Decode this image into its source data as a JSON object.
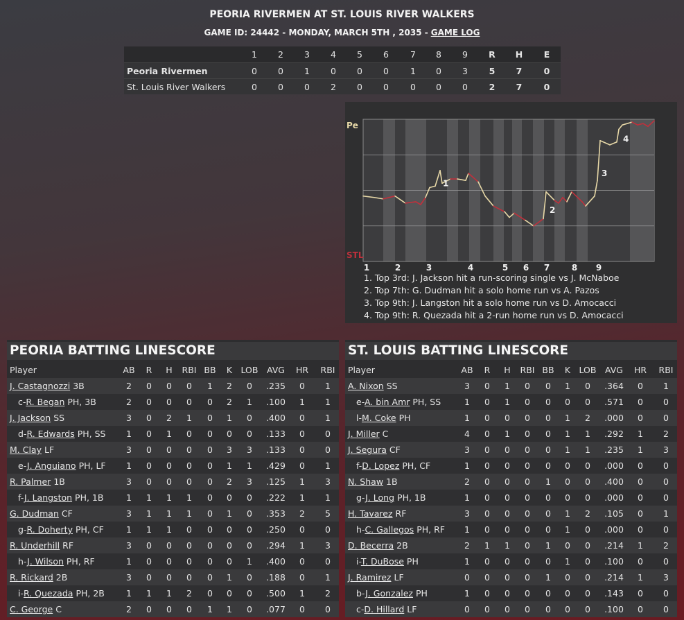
{
  "header": {
    "title": "PEORIA RIVERMEN AT ST. LOUIS RIVER WALKERS",
    "subtitle": "GAME ID: 24442 - MONDAY, MARCH 5TH , 2035 -",
    "link": "GAME LOG"
  },
  "linescore": {
    "columns": [
      "1",
      "2",
      "3",
      "4",
      "5",
      "6",
      "7",
      "8",
      "9",
      "R",
      "H",
      "E"
    ],
    "rows": [
      {
        "team": "Peoria Rivermen",
        "cells": [
          "0",
          "0",
          "1",
          "0",
          "0",
          "0",
          "1",
          "0",
          "3",
          "5",
          "7",
          "0"
        ]
      },
      {
        "team": "St. Louis River Walkers",
        "cells": [
          "0",
          "0",
          "0",
          "2",
          "0",
          "0",
          "0",
          "0",
          "0",
          "2",
          "7",
          "0"
        ]
      }
    ]
  },
  "chart_data": {
    "type": "line",
    "x": [
      0,
      3.2,
      5.8,
      9.2,
      12.2,
      15.2,
      16.6,
      18,
      19.2,
      20.8,
      22.2,
      22.8,
      25.2,
      27.2,
      29.6,
      30.4,
      33.2,
      35.2,
      37.6,
      40.8,
      42.2,
      43.6,
      46.8,
      49.2,
      52,
      52.8,
      55.2,
      56.4,
      57.6,
      58.8,
      60.2,
      63.2,
      64.2,
      66.8,
      67.6,
      68.4,
      71.2,
      73.2,
      73.8,
      74.8,
      77.6,
      79.2,
      80.8,
      82.2,
      84
    ],
    "values": [
      46,
      45,
      44,
      46,
      41,
      42,
      40,
      45,
      52,
      53,
      64,
      55,
      58,
      58,
      57,
      62,
      56,
      46,
      39,
      35,
      31,
      34,
      29,
      25,
      30,
      49,
      43,
      41,
      45,
      42,
      49,
      42,
      39,
      46,
      57,
      85,
      82,
      84,
      93,
      96,
      98,
      96,
      97,
      95,
      99
    ],
    "color": "#e8d9a8",
    "alt_color": "#c0303c",
    "xlim": [
      0,
      84
    ],
    "xticks": [
      {
        "value": 1,
        "label": "1"
      },
      {
        "value": 10,
        "label": "2"
      },
      {
        "value": 19,
        "label": "3"
      },
      {
        "value": 31,
        "label": "4"
      },
      {
        "value": 41,
        "label": "5"
      },
      {
        "value": 47,
        "label": "6"
      },
      {
        "value": 53,
        "label": "7"
      },
      {
        "value": 61,
        "label": "8"
      },
      {
        "value": 68,
        "label": "9"
      }
    ],
    "ylim": [
      0,
      100
    ],
    "yticks": [
      {
        "value": 100,
        "label": "Pe"
      },
      {
        "value": 0,
        "label": "STL"
      }
    ],
    "annotations": [
      {
        "text": "1",
        "x": 22.6,
        "y": 55
      },
      {
        "text": "2",
        "x": 53.4,
        "y": 36
      },
      {
        "text": "3",
        "x": 68.4,
        "y": 62
      },
      {
        "text": "4",
        "x": 74.6,
        "y": 86
      }
    ],
    "notes": [
      "1. Top 3rd: J. Jackson hit a run-scoring single vs J. McNaboe",
      "2. Top 7th: G. Dudman hit a solo home run vs A. Pazos",
      "3. Top 9th: J. Langston hit a solo home run vs D. Amocacci",
      "4. Top 9th: R. Quezada hit a 2-run home run vs D. Amocacci"
    ]
  },
  "batting": [
    {
      "title": "PEORIA BATTING LINESCORE",
      "columns": [
        "Player",
        "AB",
        "R",
        "H",
        "RBI",
        "BB",
        "K",
        "LOB",
        "AVG",
        "HR",
        "RBI"
      ],
      "rows": [
        {
          "name": "J. Castagnozzi",
          "pos": "3B",
          "stats": [
            "2",
            "0",
            "0",
            "0",
            "1",
            "2",
            "0",
            ".235",
            "0",
            "1"
          ]
        },
        {
          "prefix": "c-",
          "name": "R. Began",
          "pos": "PH, 3B",
          "stats": [
            "2",
            "0",
            "0",
            "0",
            "0",
            "2",
            "1",
            ".100",
            "1",
            "1"
          ]
        },
        {
          "name": "J. Jackson",
          "pos": "SS",
          "stats": [
            "3",
            "0",
            "2",
            "1",
            "0",
            "1",
            "0",
            ".400",
            "0",
            "1"
          ]
        },
        {
          "prefix": "d-",
          "name": "R. Edwards",
          "pos": "PH, SS",
          "stats": [
            "1",
            "0",
            "1",
            "0",
            "0",
            "0",
            "0",
            ".133",
            "0",
            "0"
          ]
        },
        {
          "name": "M. Clay",
          "pos": "LF",
          "stats": [
            "3",
            "0",
            "0",
            "0",
            "0",
            "3",
            "3",
            ".133",
            "0",
            "0"
          ]
        },
        {
          "prefix": "e-",
          "name": "J. Anguiano",
          "pos": "PH, LF",
          "stats": [
            "1",
            "0",
            "0",
            "0",
            "0",
            "1",
            "1",
            ".429",
            "0",
            "1"
          ]
        },
        {
          "name": "R. Palmer",
          "pos": "1B",
          "stats": [
            "3",
            "0",
            "0",
            "0",
            "0",
            "2",
            "3",
            ".125",
            "1",
            "3"
          ]
        },
        {
          "prefix": "f-",
          "name": "J. Langston",
          "pos": "PH, 1B",
          "stats": [
            "1",
            "1",
            "1",
            "1",
            "0",
            "0",
            "0",
            ".222",
            "1",
            "1"
          ]
        },
        {
          "name": "G. Dudman",
          "pos": "CF",
          "stats": [
            "3",
            "1",
            "1",
            "1",
            "0",
            "1",
            "0",
            ".353",
            "2",
            "5"
          ]
        },
        {
          "prefix": "g-",
          "name": "R. Doherty",
          "pos": "PH, CF",
          "stats": [
            "1",
            "1",
            "1",
            "0",
            "0",
            "0",
            "0",
            ".250",
            "0",
            "0"
          ]
        },
        {
          "name": "R. Underhill",
          "pos": "RF",
          "stats": [
            "3",
            "0",
            "0",
            "0",
            "0",
            "0",
            "0",
            ".294",
            "1",
            "3"
          ]
        },
        {
          "prefix": "h-",
          "name": "J. Wilson",
          "pos": "PH, RF",
          "stats": [
            "1",
            "0",
            "0",
            "0",
            "0",
            "0",
            "1",
            ".400",
            "0",
            "0"
          ]
        },
        {
          "name": "R. Rickard",
          "pos": "2B",
          "stats": [
            "3",
            "0",
            "0",
            "0",
            "0",
            "1",
            "0",
            ".188",
            "0",
            "1"
          ]
        },
        {
          "prefix": "i-",
          "name": "R. Quezada",
          "pos": "PH, 2B",
          "stats": [
            "1",
            "1",
            "1",
            "2",
            "0",
            "0",
            "0",
            ".500",
            "1",
            "2"
          ]
        },
        {
          "name": "C. George",
          "pos": "C",
          "stats": [
            "2",
            "0",
            "0",
            "0",
            "1",
            "1",
            "0",
            ".077",
            "0",
            "0"
          ]
        }
      ]
    },
    {
      "title": "ST. LOUIS BATTING LINESCORE",
      "columns": [
        "Player",
        "AB",
        "R",
        "H",
        "RBI",
        "BB",
        "K",
        "LOB",
        "AVG",
        "HR",
        "RBI"
      ],
      "rows": [
        {
          "name": "A. Nixon",
          "pos": "SS",
          "stats": [
            "3",
            "0",
            "1",
            "0",
            "0",
            "1",
            "0",
            ".364",
            "0",
            "1"
          ]
        },
        {
          "prefix": "e-",
          "name": "A. bin Amr",
          "pos": "PH, SS",
          "stats": [
            "1",
            "0",
            "1",
            "0",
            "0",
            "0",
            "0",
            ".571",
            "0",
            "0"
          ]
        },
        {
          "prefix": "l-",
          "name": "M. Coke",
          "pos": "PH",
          "stats": [
            "1",
            "0",
            "0",
            "0",
            "0",
            "1",
            "2",
            ".000",
            "0",
            "0"
          ]
        },
        {
          "name": "J. Miller",
          "pos": "C",
          "stats": [
            "4",
            "0",
            "1",
            "0",
            "0",
            "1",
            "1",
            ".292",
            "1",
            "2"
          ]
        },
        {
          "name": "J. Segura",
          "pos": "CF",
          "stats": [
            "3",
            "0",
            "0",
            "0",
            "0",
            "1",
            "1",
            ".235",
            "1",
            "3"
          ]
        },
        {
          "prefix": "f-",
          "name": "D. Lopez",
          "pos": "PH, CF",
          "stats": [
            "1",
            "0",
            "0",
            "0",
            "0",
            "0",
            "0",
            ".000",
            "0",
            "0"
          ]
        },
        {
          "name": "N. Shaw",
          "pos": "1B",
          "stats": [
            "2",
            "0",
            "0",
            "0",
            "1",
            "0",
            "0",
            ".400",
            "0",
            "0"
          ]
        },
        {
          "prefix": "g-",
          "name": "J. Long",
          "pos": "PH, 1B",
          "stats": [
            "1",
            "0",
            "0",
            "0",
            "0",
            "0",
            "0",
            ".000",
            "0",
            "0"
          ]
        },
        {
          "name": "H. Tavarez",
          "pos": "RF",
          "stats": [
            "3",
            "0",
            "0",
            "0",
            "0",
            "1",
            "2",
            ".105",
            "0",
            "1"
          ]
        },
        {
          "prefix": "h-",
          "name": "C. Gallegos",
          "pos": "PH, RF",
          "stats": [
            "1",
            "0",
            "0",
            "0",
            "0",
            "1",
            "0",
            ".000",
            "0",
            "0"
          ]
        },
        {
          "name": "D. Becerra",
          "pos": "2B",
          "stats": [
            "2",
            "1",
            "1",
            "0",
            "1",
            "0",
            "0",
            ".214",
            "1",
            "2"
          ]
        },
        {
          "prefix": "i-",
          "name": "T. DuBose",
          "pos": "PH",
          "stats": [
            "1",
            "0",
            "0",
            "0",
            "0",
            "1",
            "0",
            ".100",
            "0",
            "0"
          ]
        },
        {
          "name": "J. Ramirez",
          "pos": "LF",
          "stats": [
            "0",
            "0",
            "0",
            "0",
            "1",
            "0",
            "0",
            ".214",
            "1",
            "3"
          ]
        },
        {
          "prefix": "b-",
          "name": "J. Gonzalez",
          "pos": "PH",
          "stats": [
            "1",
            "0",
            "0",
            "0",
            "0",
            "0",
            "0",
            ".143",
            "0",
            "0"
          ]
        },
        {
          "prefix": "c-",
          "name": "D. Hillard",
          "pos": "LF",
          "stats": [
            "0",
            "0",
            "0",
            "0",
            "0",
            "0",
            "0",
            ".100",
            "0",
            "0"
          ]
        }
      ]
    }
  ]
}
